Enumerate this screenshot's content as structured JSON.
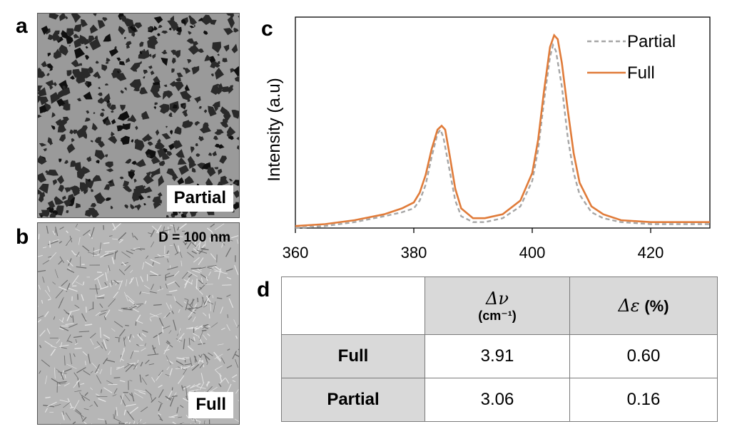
{
  "panels": {
    "a": {
      "letter": "a",
      "label": "Partial"
    },
    "b": {
      "letter": "b",
      "label": "Full",
      "scale": "D = 100 nm"
    },
    "c": {
      "letter": "c"
    },
    "d": {
      "letter": "d"
    }
  },
  "chart_data": {
    "type": "line",
    "title": "",
    "xlabel": "",
    "ylabel": "Intensity (a.u)",
    "xlim": [
      360,
      430
    ],
    "ylim": [
      0,
      1
    ],
    "xticks": [
      360,
      380,
      400,
      420
    ],
    "legend_position": "top-right",
    "series": [
      {
        "name": "Partial",
        "style": "dashed",
        "color": "#a6a6a6",
        "x": [
          360,
          365,
          370,
          375,
          378,
          380,
          381,
          382,
          383,
          384,
          384.5,
          385,
          386,
          387,
          388,
          390,
          392,
          395,
          398,
          400,
          401,
          402,
          403,
          403.5,
          404,
          405,
          406,
          407,
          408,
          410,
          412,
          415,
          420,
          425,
          430
        ],
        "values": [
          0.0,
          0.01,
          0.03,
          0.06,
          0.08,
          0.1,
          0.14,
          0.22,
          0.36,
          0.48,
          0.5,
          0.46,
          0.3,
          0.14,
          0.06,
          0.03,
          0.03,
          0.05,
          0.11,
          0.24,
          0.4,
          0.65,
          0.87,
          0.93,
          0.9,
          0.72,
          0.46,
          0.28,
          0.17,
          0.08,
          0.05,
          0.03,
          0.02,
          0.02,
          0.02
        ]
      },
      {
        "name": "Full",
        "style": "solid",
        "color": "#e07b39",
        "x": [
          360,
          365,
          370,
          375,
          378,
          380,
          381,
          382,
          383,
          384,
          384.7,
          385.3,
          386,
          387,
          388,
          390,
          392,
          395,
          398,
          400,
          401,
          402,
          403,
          403.7,
          404.3,
          405,
          406,
          407,
          408,
          410,
          412,
          415,
          420,
          425,
          430
        ],
        "values": [
          0.01,
          0.02,
          0.04,
          0.07,
          0.1,
          0.13,
          0.18,
          0.27,
          0.4,
          0.5,
          0.52,
          0.5,
          0.38,
          0.2,
          0.1,
          0.05,
          0.05,
          0.07,
          0.14,
          0.28,
          0.45,
          0.7,
          0.92,
          0.98,
          0.96,
          0.84,
          0.6,
          0.38,
          0.23,
          0.11,
          0.07,
          0.04,
          0.03,
          0.03,
          0.03
        ]
      }
    ]
  },
  "table": {
    "header": {
      "col1_symbol": "Δν",
      "col1_unit": "(cm⁻¹)",
      "col2_symbol": "Δε",
      "col2_unit": "(%)"
    },
    "rows": [
      {
        "label": "Full",
        "dnu": "3.91",
        "deps": "0.60"
      },
      {
        "label": "Partial",
        "dnu": "3.06",
        "deps": "0.16"
      }
    ]
  }
}
